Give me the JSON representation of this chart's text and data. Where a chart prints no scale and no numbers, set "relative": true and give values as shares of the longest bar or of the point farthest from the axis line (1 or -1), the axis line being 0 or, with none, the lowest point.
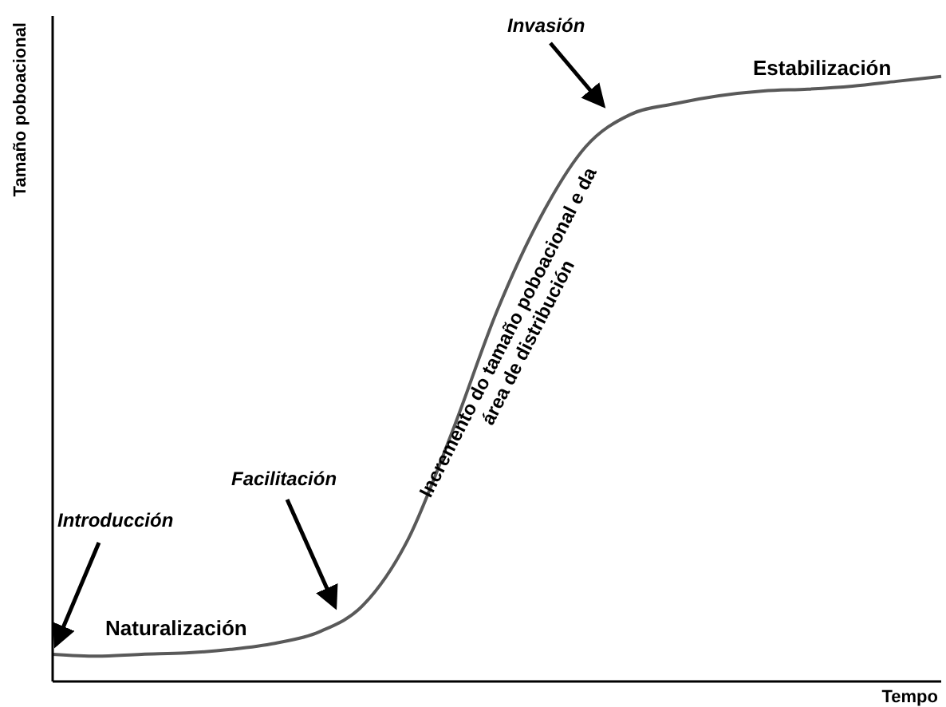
{
  "chart_data": {
    "type": "line",
    "relative": true,
    "xlabel": "Tempo",
    "ylabel": "Tamaño poboacional",
    "categories": [
      null,
      null,
      null,
      null,
      null,
      null,
      null,
      null,
      null,
      null,
      null,
      null,
      null,
      null,
      null,
      null,
      null,
      null,
      null,
      null,
      null
    ],
    "series": [
      {
        "color": "#595959",
        "values": [
          0.045,
          0.042,
          0.045,
          0.047,
          0.053,
          0.063,
          0.082,
          0.127,
          0.235,
          0.414,
          0.612,
          0.77,
          0.884,
          0.937,
          0.955,
          0.968,
          0.976,
          0.979,
          0.984,
          0.992,
          1
        ]
      }
    ],
    "annotations": [
      "Introducción",
      "Naturalización",
      "Facilitación",
      "Incremento do tamaño poboacional e da área de distribución",
      "Invasión",
      "Estabilización"
    ],
    "grid": false,
    "legend": false,
    "marker": "none",
    "line_style": "solid"
  }
}
